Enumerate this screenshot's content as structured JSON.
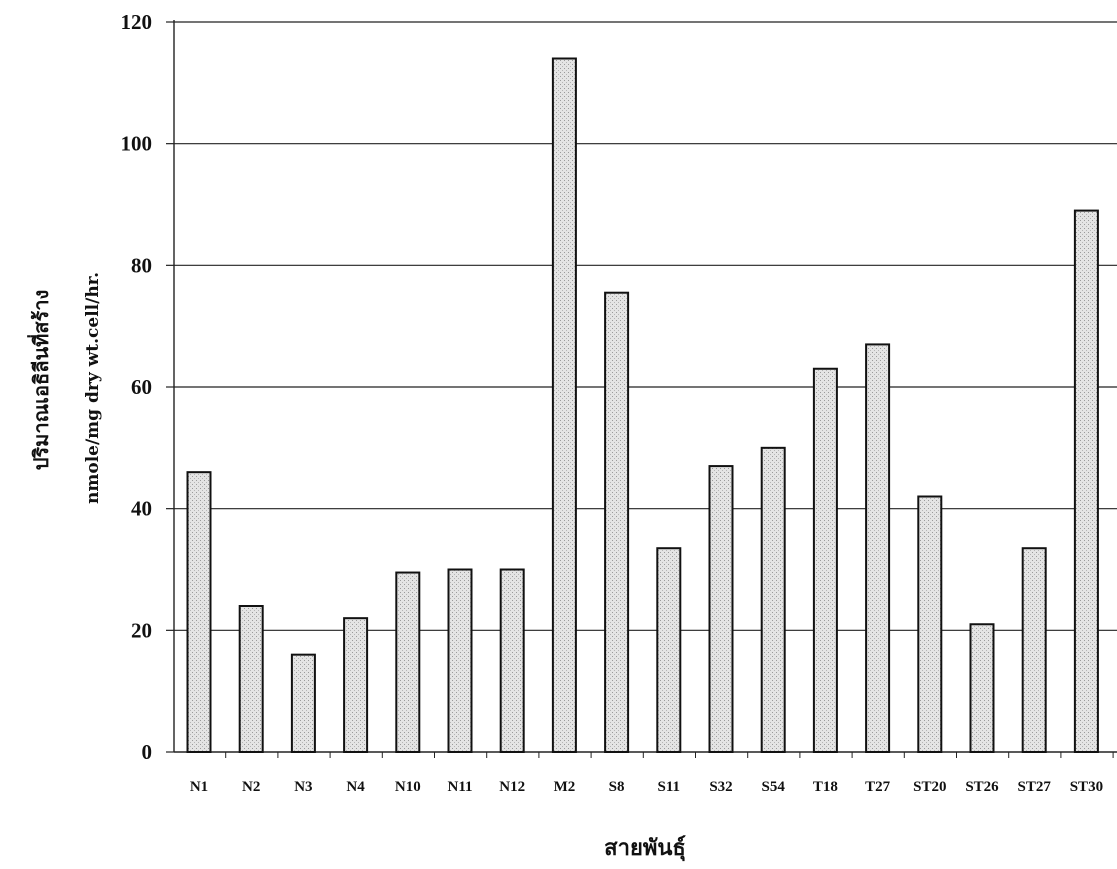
{
  "chart_data": {
    "type": "bar",
    "categories": [
      "N1",
      "N2",
      "N3",
      "N4",
      "N10",
      "N11",
      "N12",
      "M2",
      "S8",
      "S11",
      "S32",
      "S54",
      "T18",
      "T27",
      "ST20",
      "ST26",
      "ST27",
      "ST30"
    ],
    "values": [
      46,
      24,
      16,
      22,
      29.5,
      30,
      30,
      114,
      75.5,
      33.5,
      47,
      50,
      63,
      67,
      42,
      21,
      33.5,
      89
    ],
    "xlabel": "สายพันธุ์",
    "ylabel": "ปริมาณเอธิลีนที่สร้าง",
    "ylabel_unit": "nmole/mg dry wt.cell/hr.",
    "yticks": [
      0,
      20,
      40,
      60,
      80,
      100,
      120
    ],
    "ylim": [
      0,
      120
    ],
    "grid": true,
    "bar_fill": "#e6e6e6",
    "bar_stroke": "#111111"
  }
}
